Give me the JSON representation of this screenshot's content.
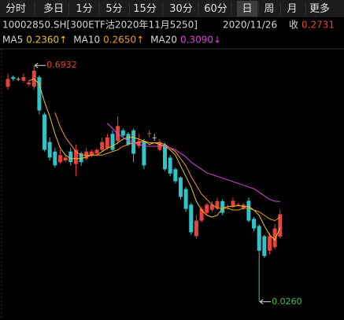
{
  "tabs": [
    "分时",
    "多日",
    "1分",
    "5分",
    "15分",
    "30分",
    "60分",
    "日",
    "周",
    "月",
    "更多"
  ],
  "selected_tab_index": 7,
  "info": {
    "code": "10002850.SH[300ETF沽2020年11月5250]",
    "date": "2020/11/26",
    "close_label": "收",
    "close": "0.2731"
  },
  "ma_legend": [
    {
      "name": "MA5",
      "value": "0.2360↑",
      "color": "#f2c21b"
    },
    {
      "name": "MA10",
      "value": "0.2650↑",
      "color": "#f39a1e"
    },
    {
      "name": "MA20",
      "value": "0.3090↓",
      "color": "#e040e0"
    }
  ],
  "chart_data": {
    "type": "candlestick",
    "up_color": "#e8403a",
    "down_color": "#2ec4c8",
    "flat_color": "#bbbbbb",
    "ylim": [
      -0.01,
      0.727
    ],
    "open": [
      0.633,
      0.66,
      0.655,
      0.65,
      0.64,
      0.633,
      0.66,
      0.555,
      0.477,
      0.45,
      0.42,
      0.425,
      0.45,
      0.415,
      0.445,
      0.43,
      0.44,
      0.445,
      0.455,
      0.46,
      0.5,
      0.48,
      0.51,
      0.5,
      0.51,
      0.466,
      0.48,
      0.5,
      0.49,
      0.455,
      0.47,
      0.433,
      0.4,
      0.377,
      0.344,
      0.3,
      0.211,
      0.255,
      0.277,
      0.285,
      0.29,
      0.31,
      0.29,
      0.295,
      0.298,
      0.29,
      0.311,
      0.26,
      0.24,
      0.211,
      0.17,
      0.18,
      0.21
    ],
    "high": [
      0.67,
      0.665,
      0.66,
      0.67,
      0.65,
      0.6932,
      0.665,
      0.56,
      0.49,
      0.46,
      0.455,
      0.44,
      0.46,
      0.47,
      0.45,
      0.46,
      0.455,
      0.46,
      0.49,
      0.5,
      0.51,
      0.55,
      0.515,
      0.505,
      0.515,
      0.5,
      0.485,
      0.51,
      0.5,
      0.485,
      0.475,
      0.44,
      0.405,
      0.38,
      0.35,
      0.305,
      0.27,
      0.295,
      0.305,
      0.31,
      0.32,
      0.315,
      0.3,
      0.32,
      0.305,
      0.305,
      0.32,
      0.265,
      0.245,
      0.215,
      0.22,
      0.245,
      0.285
    ],
    "low": [
      0.625,
      0.65,
      0.65,
      0.645,
      0.635,
      0.625,
      0.555,
      0.45,
      0.425,
      0.405,
      0.415,
      0.42,
      0.41,
      0.38,
      0.41,
      0.425,
      0.435,
      0.44,
      0.45,
      0.455,
      0.45,
      0.47,
      0.49,
      0.465,
      0.42,
      0.46,
      0.4,
      0.49,
      0.48,
      0.45,
      0.395,
      0.38,
      0.36,
      0.315,
      0.28,
      0.215,
      0.205,
      0.25,
      0.27,
      0.28,
      0.285,
      0.27,
      0.285,
      0.29,
      0.295,
      0.285,
      0.25,
      0.225,
      0.026,
      0.15,
      0.16,
      0.175,
      0.205
    ],
    "close": [
      0.655,
      0.655,
      0.655,
      0.66,
      0.645,
      0.678,
      0.566,
      0.455,
      0.433,
      0.411,
      0.44,
      0.433,
      0.42,
      0.455,
      0.42,
      0.45,
      0.45,
      0.455,
      0.477,
      0.49,
      0.455,
      0.522,
      0.495,
      0.47,
      0.444,
      0.48,
      0.411,
      0.502,
      0.49,
      0.477,
      0.4,
      0.388,
      0.366,
      0.322,
      0.288,
      0.222,
      0.255,
      0.288,
      0.3,
      0.3,
      0.31,
      0.277,
      0.291,
      0.311,
      0.3,
      0.3,
      0.255,
      0.233,
      0.17,
      0.155,
      0.211,
      0.233,
      0.273
    ],
    "series": [
      {
        "name": "MA5",
        "color": "#f2c21b",
        "values": [
          null,
          null,
          null,
          null,
          0.65,
          0.655,
          0.64,
          0.59,
          0.55,
          0.5,
          0.46,
          0.44,
          0.43,
          0.43,
          0.43,
          0.435,
          0.44,
          0.44,
          0.45,
          0.46,
          0.465,
          0.475,
          0.485,
          0.49,
          0.49,
          0.485,
          0.48,
          0.47,
          0.475,
          0.47,
          0.465,
          0.455,
          0.44,
          0.41,
          0.38,
          0.35,
          0.31,
          0.285,
          0.27,
          0.265,
          0.27,
          0.29,
          0.295,
          0.295,
          0.298,
          0.295,
          0.295,
          0.285,
          0.27,
          0.24,
          0.215,
          0.2,
          0.236
        ]
      },
      {
        "name": "MA10",
        "color": "#f39a1e",
        "values": [
          null,
          null,
          null,
          null,
          null,
          null,
          null,
          null,
          null,
          0.56,
          0.52,
          0.49,
          0.47,
          0.45,
          0.44,
          0.44,
          0.44,
          0.44,
          0.44,
          0.445,
          0.45,
          0.455,
          0.465,
          0.47,
          0.475,
          0.475,
          0.48,
          0.475,
          0.475,
          0.475,
          0.47,
          0.46,
          0.45,
          0.43,
          0.41,
          0.38,
          0.355,
          0.33,
          0.315,
          0.3,
          0.29,
          0.29,
          0.29,
          0.285,
          0.285,
          0.29,
          0.29,
          0.285,
          0.28,
          0.27,
          0.26,
          0.255,
          0.265
        ]
      },
      {
        "name": "MA20",
        "color": "#e040e0",
        "values": [
          null,
          null,
          null,
          null,
          null,
          null,
          null,
          null,
          null,
          null,
          null,
          null,
          null,
          null,
          null,
          null,
          null,
          null,
          null,
          0.53,
          0.515,
          0.5,
          0.49,
          0.48,
          0.475,
          0.47,
          0.465,
          0.465,
          0.465,
          0.465,
          0.465,
          0.46,
          0.455,
          0.445,
          0.435,
          0.42,
          0.41,
          0.4,
          0.39,
          0.385,
          0.38,
          0.375,
          0.37,
          0.365,
          0.36,
          0.355,
          0.35,
          0.345,
          0.335,
          0.325,
          0.315,
          0.31,
          0.309
        ]
      }
    ],
    "max_index": 5,
    "max_label": "0.6932",
    "min_index": 48,
    "min_label": "0.0260"
  }
}
